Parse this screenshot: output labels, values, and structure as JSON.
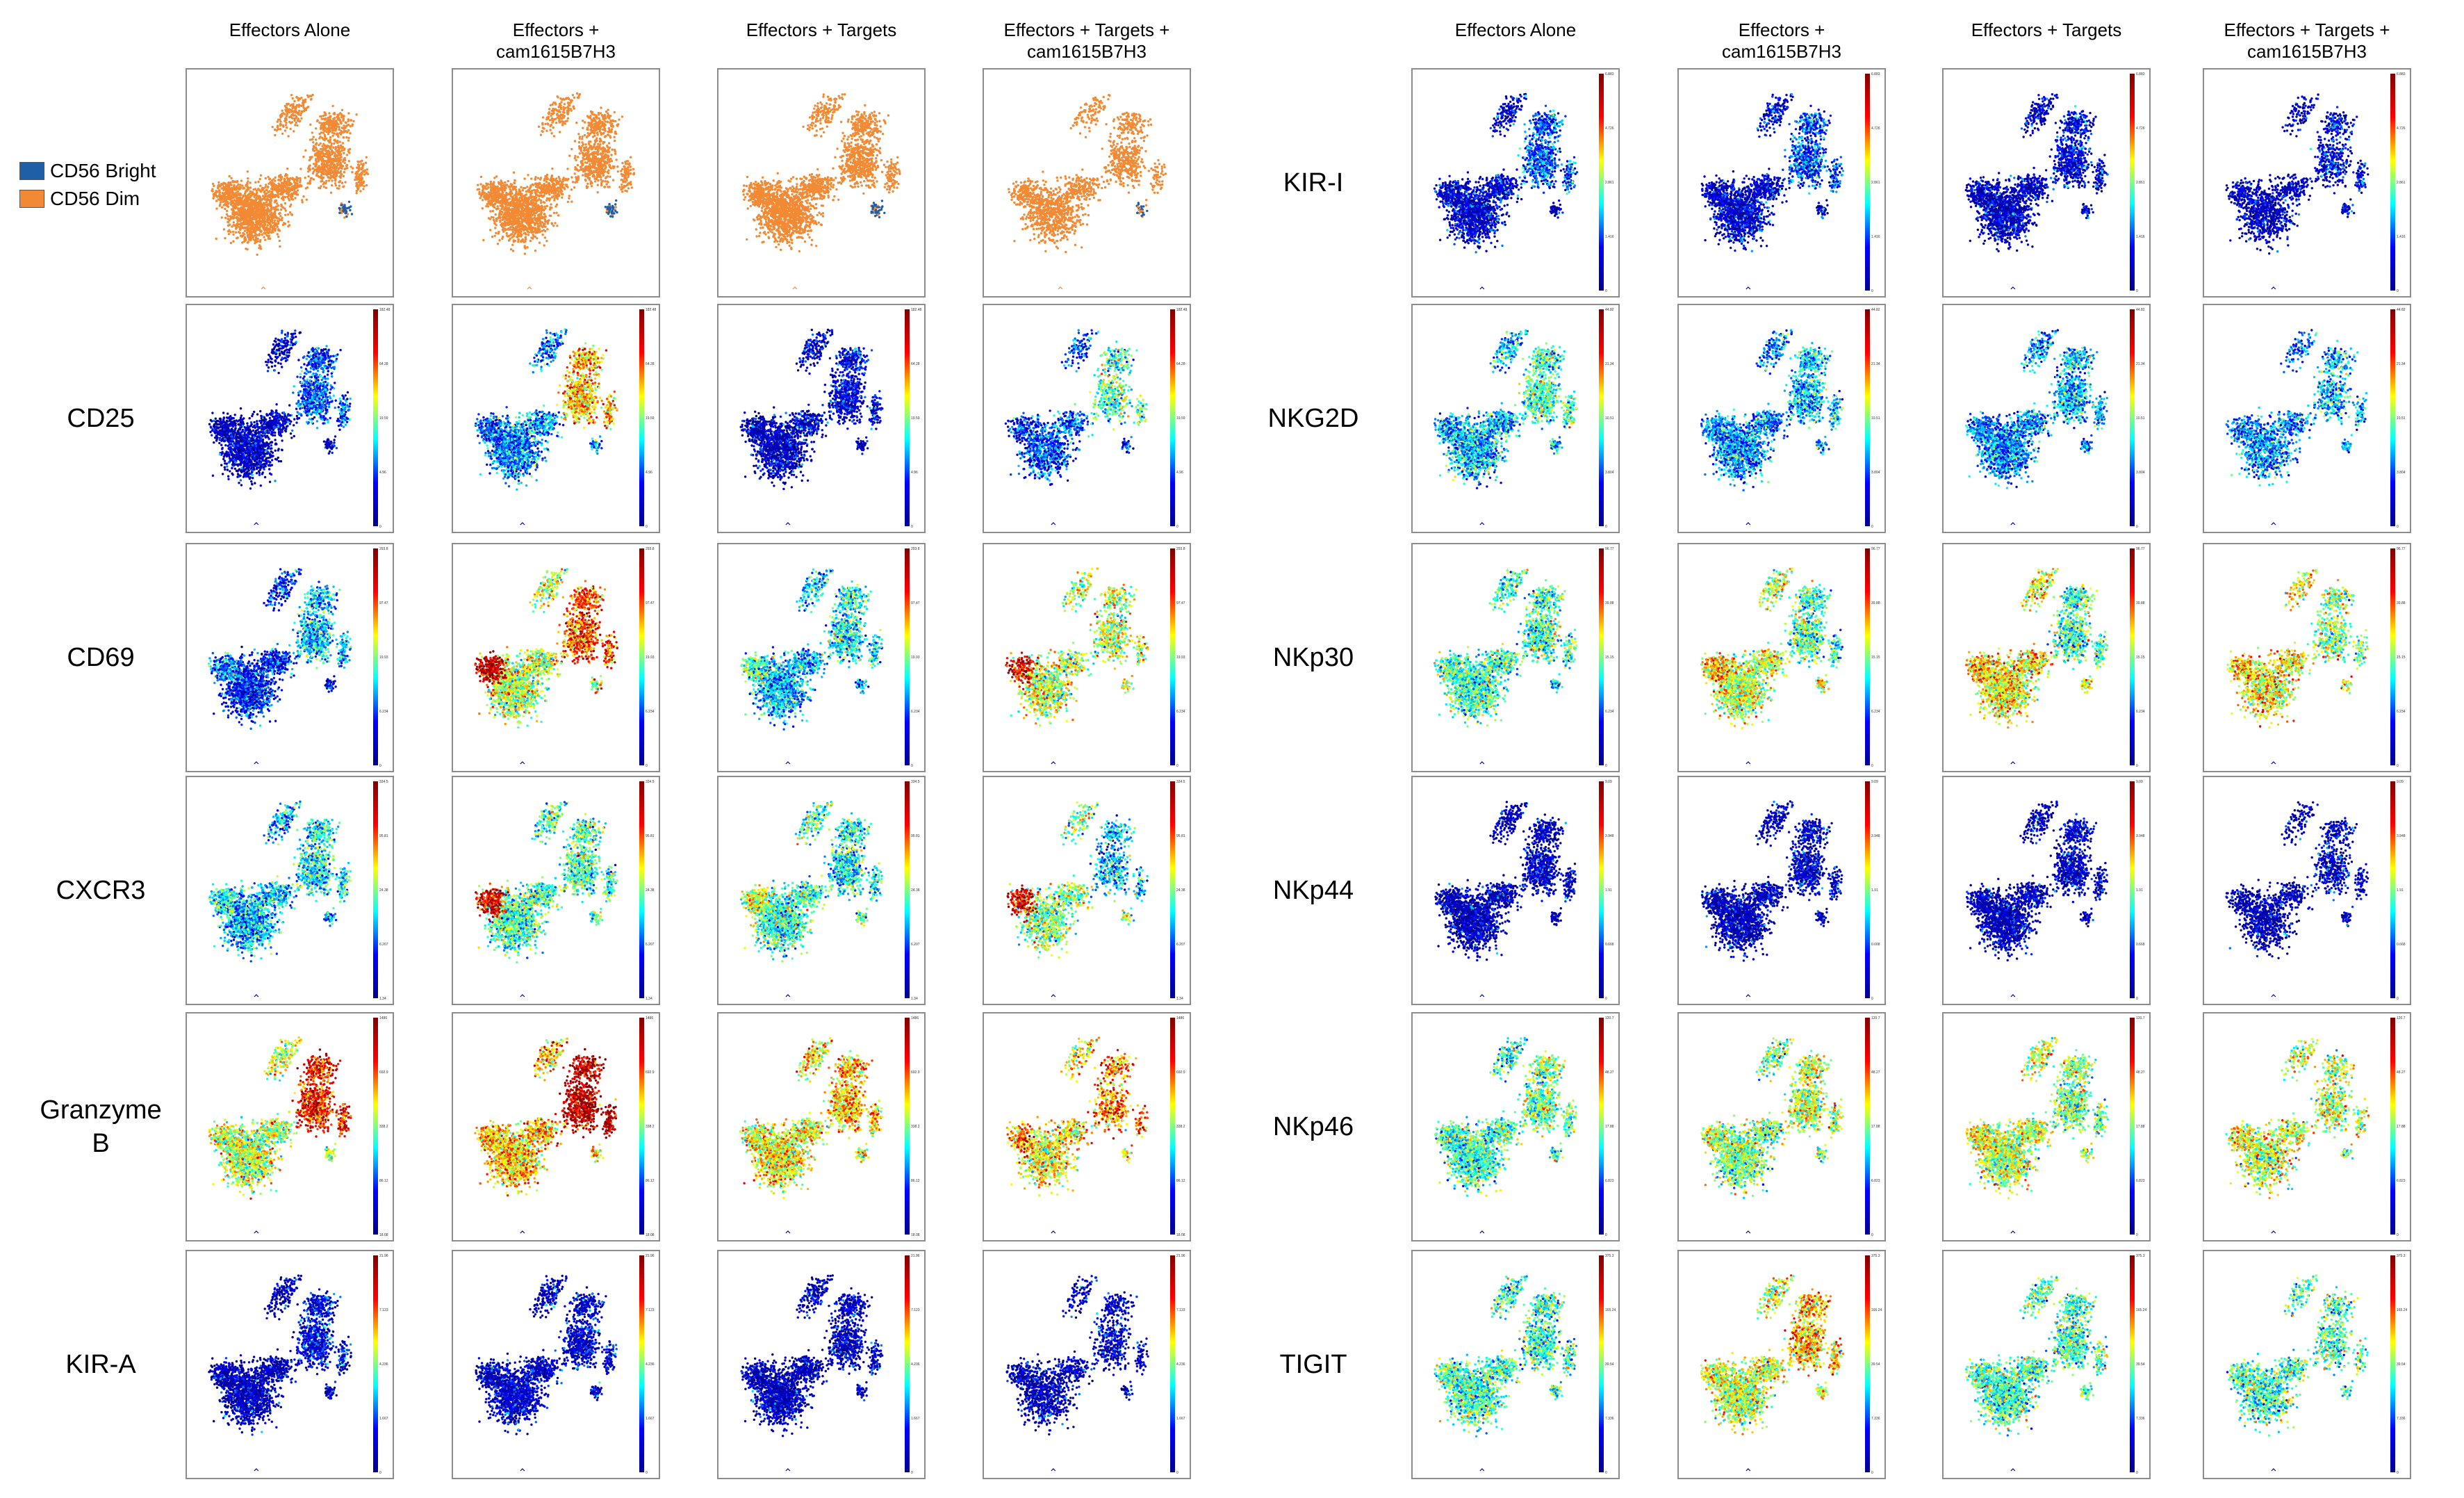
{
  "figure": {
    "left_block": {
      "column_headers": [
        "Effectors Alone",
        "Effectors +\ncam1615B7H3",
        "Effectors + Targets",
        "Effectors + Targets +\ncam1615B7H3"
      ],
      "row_labels": [
        "",
        "CD25",
        "CD69",
        "CXCR3",
        "Granzyme\nB",
        "KIR-A"
      ]
    },
    "right_block": {
      "column_headers": [
        "Effectors Alone",
        "Effectors +\ncam1615B7H3",
        "Effectors + Targets",
        "Effectors + Targets +\ncam1615B7H3"
      ],
      "row_labels": [
        "KIR-I",
        "NKG2D",
        "NKp30",
        "NKp44",
        "NKp46",
        "TIGIT"
      ]
    },
    "legend": [
      {
        "label": "CD56 Bright",
        "color": "#1f5fa5"
      },
      {
        "label": "CD56 Dim",
        "color": "#f28a35"
      }
    ]
  },
  "chart_data": {
    "type": "scatter",
    "description_of_encoding": "viSNE/tSNE scatter plots; first row colored by population, remaining rows colored by marker intensity (jet colormap)",
    "colormap": [
      "#00008f",
      "#0000ff",
      "#00ffff",
      "#ffff00",
      "#ff0000",
      "#800000"
    ],
    "colorbar_ticks": {
      "CD25": [
        "182.48",
        "64.28",
        "19.59",
        "4.96",
        "0"
      ],
      "CD69": [
        "293.8",
        "97.47",
        "19.93",
        "6.234",
        "0"
      ],
      "CXCR3": [
        "334.5",
        "95.81",
        "24.38",
        "6.207",
        "1.34"
      ],
      "Granzyme B": [
        "1486",
        "692.9",
        "338.2",
        "86.12",
        "18.08"
      ],
      "KIR-A": [
        "21.96",
        "7.123",
        "4.236",
        "1.667",
        "0"
      ],
      "KIR-I": [
        "6.883",
        "4.726",
        "2.861",
        "1.416",
        "0"
      ],
      "NKG2D": [
        "44.82",
        "21.34",
        "10.51",
        "3.804",
        "0"
      ],
      "NKp30": [
        "96.77",
        "39.88",
        "15.15",
        "6.234",
        "0"
      ],
      "NKp44": [
        "9.09",
        "3.948",
        "1.91",
        "0.668",
        "0"
      ],
      "NKp46": [
        "120.7",
        "48.27",
        "17.88",
        "6.823",
        "0"
      ],
      "TIGIT": [
        "375.3",
        "165.24",
        "39.54",
        "7.336",
        "0"
      ]
    },
    "conditions": [
      "Effectors Alone",
      "Effectors + cam1615B7H3",
      "Effectors + Targets",
      "Effectors + Targets + cam1615B7H3"
    ],
    "population_row": {
      "legend": [
        "CD56 Bright",
        "CD56 Dim"
      ],
      "bright_fraction": [
        0.03,
        0.04,
        0.01,
        0.02
      ]
    },
    "marker_intensity": {
      "CD25": {
        "overall": [
          0.1,
          0.3,
          0.1,
          0.25
        ],
        "right_cluster": [
          0.25,
          0.65,
          0.15,
          0.45
        ],
        "left_cluster": [
          0.08,
          0.25,
          0.08,
          0.2
        ]
      },
      "CD69": {
        "overall": [
          0.2,
          0.55,
          0.35,
          0.55
        ],
        "right_cluster": [
          0.35,
          0.75,
          0.4,
          0.55
        ],
        "left_cluster": [
          0.3,
          0.9,
          0.45,
          0.85
        ]
      },
      "CXCR3": {
        "overall": [
          0.35,
          0.45,
          0.45,
          0.5
        ],
        "right_cluster": [
          0.4,
          0.45,
          0.4,
          0.35
        ],
        "left_cluster": [
          0.4,
          0.85,
          0.55,
          0.85
        ]
      },
      "Granzyme B": {
        "overall": [
          0.55,
          0.65,
          0.6,
          0.6
        ],
        "right_cluster": [
          0.8,
          0.9,
          0.65,
          0.7
        ],
        "left_cluster": [
          0.55,
          0.65,
          0.6,
          0.7
        ]
      },
      "KIR-A": {
        "overall": [
          0.08,
          0.1,
          0.08,
          0.08
        ],
        "right_cluster": [
          0.15,
          0.12,
          0.1,
          0.1
        ],
        "left_cluster": [
          0.08,
          0.1,
          0.08,
          0.08
        ]
      },
      "KIR-I": {
        "overall": [
          0.12,
          0.12,
          0.1,
          0.1
        ],
        "right_cluster": [
          0.25,
          0.25,
          0.15,
          0.15
        ],
        "left_cluster": [
          0.1,
          0.1,
          0.1,
          0.1
        ]
      },
      "NKG2D": {
        "overall": [
          0.35,
          0.3,
          0.3,
          0.3
        ],
        "right_cluster": [
          0.45,
          0.35,
          0.35,
          0.35
        ],
        "left_cluster": [
          0.35,
          0.3,
          0.3,
          0.3
        ]
      },
      "NKp30": {
        "overall": [
          0.45,
          0.55,
          0.6,
          0.6
        ],
        "right_cluster": [
          0.45,
          0.45,
          0.45,
          0.5
        ],
        "left_cluster": [
          0.45,
          0.65,
          0.65,
          0.65
        ]
      },
      "NKp44": {
        "overall": [
          0.08,
          0.08,
          0.08,
          0.08
        ],
        "right_cluster": [
          0.1,
          0.1,
          0.1,
          0.1
        ],
        "left_cluster": [
          0.08,
          0.08,
          0.08,
          0.08
        ]
      },
      "NKp46": {
        "overall": [
          0.45,
          0.5,
          0.55,
          0.55
        ],
        "right_cluster": [
          0.5,
          0.55,
          0.5,
          0.55
        ],
        "left_cluster": [
          0.45,
          0.55,
          0.6,
          0.6
        ]
      },
      "TIGIT": {
        "overall": [
          0.45,
          0.55,
          0.45,
          0.45
        ],
        "right_cluster": [
          0.45,
          0.65,
          0.45,
          0.45
        ],
        "left_cluster": [
          0.45,
          0.55,
          0.45,
          0.45
        ]
      }
    }
  }
}
